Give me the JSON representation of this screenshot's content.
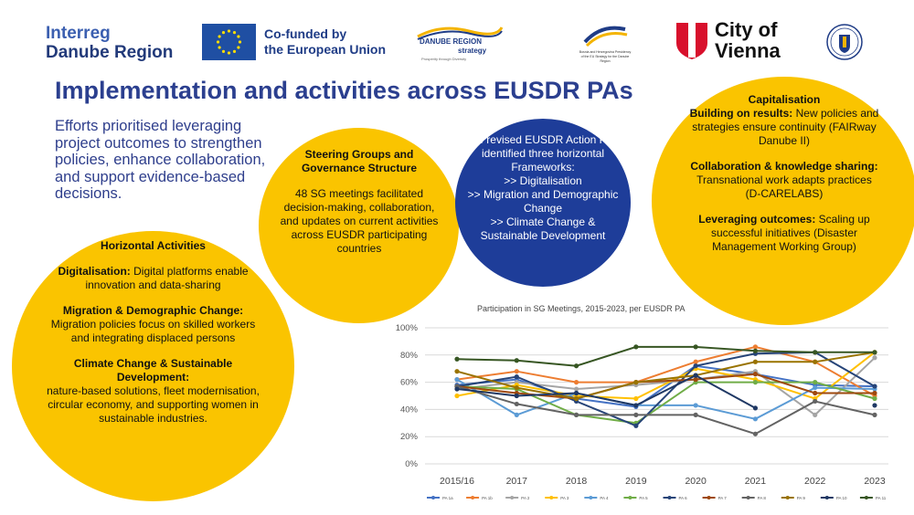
{
  "logos": {
    "interreg_line1": "Interreg",
    "interreg_line2": "Danube Region",
    "eu_line1": "Co-funded by",
    "eu_line2": "the European Union",
    "danube_strategy_line1": "DANUBE REGION",
    "danube_strategy_line2": "strategy",
    "danube_strategy_tagline": "Prosperity through Diversity",
    "presidency_text": "Bosnia and Herzegovina Presidency of the EU Strategy for the Danube Region",
    "vienna_line1": "City of",
    "vienna_line2": "Vienna"
  },
  "colors": {
    "title_blue": "#2b3f8f",
    "circle_yellow": "#fac400",
    "circle_navy": "#1e3d99",
    "eu_blue": "#1f4fa3",
    "vienna_red": "#d8102c"
  },
  "title": "Implementation and activities across EUSDR PAs",
  "intro": "Efforts prioritised leveraging project outcomes to strengthen policies, enhance collaboration, and support evidence-based decisions.",
  "horizontal": {
    "heading": "Horizontal Activities",
    "item1_bold": "Digitalisation:",
    "item1_text": " Digital platforms enable innovation and data-sharing",
    "item2_bold": "Migration & Demographic Change:",
    "item2_text": "Migration policies focus on skilled workers and integrating displaced persons",
    "item3_bold": "Climate Change & Sustainable Development:",
    "item3_text": "nature-based solutions, fleet modernisation, circular economy, and supporting women in sustainable industries."
  },
  "steering": {
    "heading": "Steering Groups and Governance Structure",
    "body": "48 SG meetings facilitated decision-making, collaboration, and updates on current activities across EUSDR participating countries"
  },
  "revised": {
    "line1": "The revised EUSDR Action Plan identified three horizontal Frameworks:",
    "line2": ">>  Digitalisation",
    "line3": ">>  Migration and Demographic Change",
    "line4": ">>  Climate Change & Sustainable Development"
  },
  "capitalisation": {
    "heading": "Capitalisation",
    "p1_bold": "Building on results:",
    "p1_text": " New policies and strategies ensure continuity (FAIRway Danube II)",
    "p2_bold": "Collaboration & knowledge sharing:",
    "p2_text": "Transnational work adapts practices (D-CARELABS)",
    "p3_bold": "Leveraging outcomes:",
    "p3_text": " Scaling up successful initiatives (Disaster Management Working Group)"
  },
  "chart_data": {
    "type": "line",
    "title": "Participation in SG Meetings, 2015-2023, per EUSDR PA",
    "x": [
      "2015/16",
      "2017",
      "2018",
      "2019",
      "2020",
      "2021",
      "2022",
      "2023"
    ],
    "ylim": [
      0,
      100
    ],
    "yticks": [
      "0%",
      "20%",
      "40%",
      "60%",
      "80%",
      "100%"
    ],
    "grid": true,
    "legend_position": "bottom",
    "series": [
      {
        "name": "PA 1a",
        "color": "#4472c4",
        "values": [
          58,
          62,
          48,
          42,
          72,
          66,
          58,
          57
        ]
      },
      {
        "name": "PA 1b",
        "color": "#ed7d31",
        "values": [
          62,
          68,
          60,
          60,
          75,
          86,
          75,
          50
        ]
      },
      {
        "name": "PA 2",
        "color": "#a5a5a5",
        "values": [
          55,
          60,
          55,
          58,
          62,
          68,
          36,
          78
        ]
      },
      {
        "name": "PA 3",
        "color": "#ffc000",
        "values": [
          50,
          58,
          50,
          48,
          70,
          62,
          48,
          82
        ]
      },
      {
        "name": "PA 4",
        "color": "#5b9bd5",
        "values": [
          62,
          36,
          52,
          43,
          43,
          33,
          56,
          55
        ]
      },
      {
        "name": "PA 5",
        "color": "#70ad47",
        "values": [
          57,
          55,
          36,
          30,
          60,
          60,
          60,
          48
        ]
      },
      {
        "name": "PA 6",
        "color": "#264478",
        "values": [
          57,
          64,
          46,
          28,
          72,
          81,
          82,
          57
        ]
      },
      {
        "name": "PA 7",
        "color": "#9e480e",
        "values": [
          57,
          52,
          48,
          60,
          62,
          66,
          52,
          52
        ]
      },
      {
        "name": "PA 8",
        "color": "#636363",
        "values": [
          57,
          44,
          36,
          36,
          36,
          22,
          46,
          36
        ]
      },
      {
        "name": "PA 9",
        "color": "#997300",
        "values": [
          68,
          56,
          48,
          60,
          65,
          75,
          75,
          82
        ]
      },
      {
        "name": "PA 10",
        "color": "#1f3864",
        "values": [
          55,
          50,
          52,
          43,
          65,
          41,
          null,
          43
        ]
      },
      {
        "name": "PA 11",
        "color": "#375623",
        "values": [
          77,
          76,
          72,
          86,
          86,
          83,
          82,
          82
        ]
      }
    ]
  }
}
